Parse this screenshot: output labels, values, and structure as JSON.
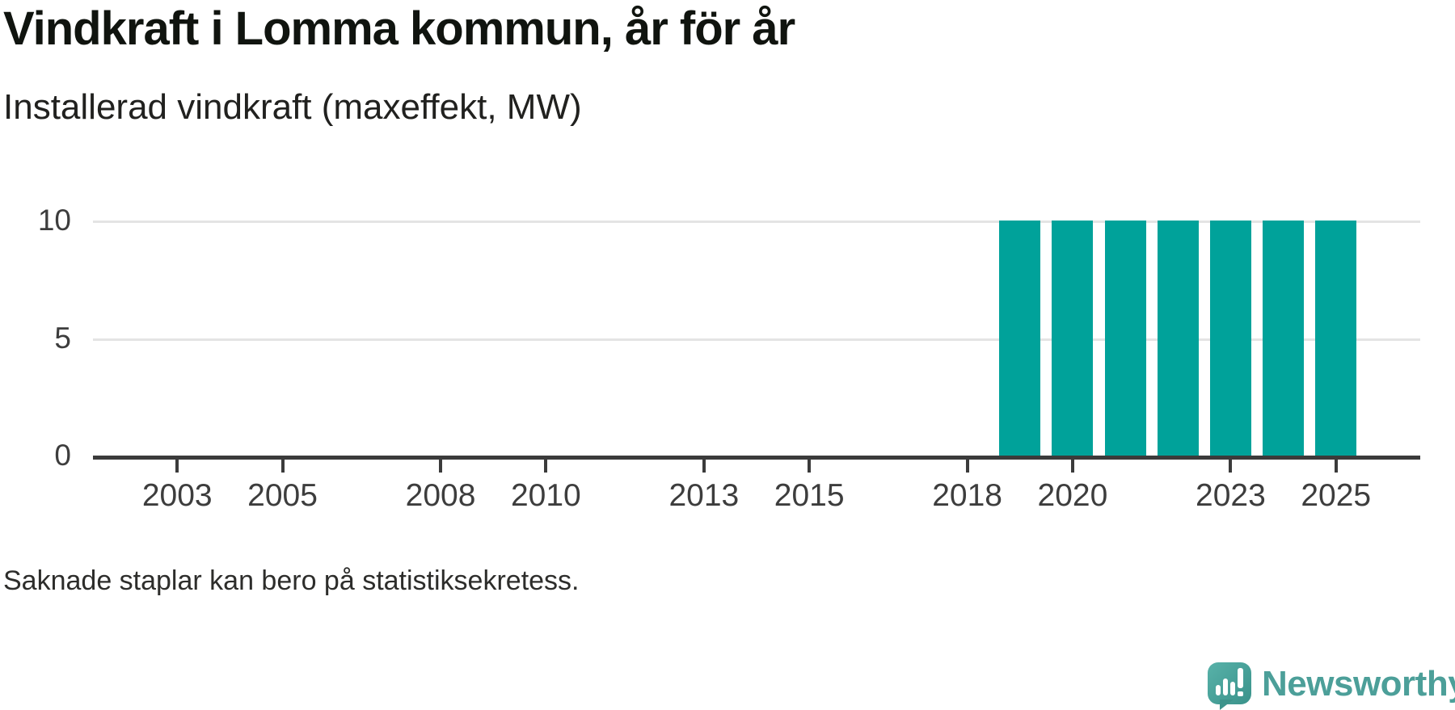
{
  "header": {
    "title": "Vindkraft i Lomma kommun, år för år",
    "subtitle": "Installerad vindkraft (maxeffekt, MW)"
  },
  "footnote": "Saknade staplar kan bero på statistiksekretess.",
  "logo": {
    "text": "Newsworthy",
    "icon": "speech-bubble-with-bar-chart-and-exclamation",
    "color": "#4c9f99"
  },
  "colors": {
    "bar": "#00a29a",
    "axis": "#3b3b3b",
    "gridline": "#e4e4e4",
    "tick_text": "#3d3d3d"
  },
  "chart_data": {
    "type": "bar",
    "title": "Vindkraft i Lomma kommun, år för år",
    "subtitle": "Installerad vindkraft (maxeffekt, MW)",
    "x": [
      2019,
      2020,
      2021,
      2022,
      2023,
      2024,
      2025
    ],
    "values": [
      10,
      10,
      10,
      10,
      10,
      10,
      10
    ],
    "series_note": "years 2002-2018 have no bars (missing / zero installed capacity shown as absent)",
    "x_tick_years": [
      2003,
      2005,
      2008,
      2010,
      2013,
      2015,
      2018,
      2020,
      2023,
      2025
    ],
    "y_ticks": [
      0,
      5,
      10
    ],
    "ylim": [
      0,
      10
    ],
    "xlim": [
      2001.4,
      2026.6
    ],
    "grid": "horizontal-only",
    "legend": "none",
    "bar_color": "#00a29a"
  }
}
